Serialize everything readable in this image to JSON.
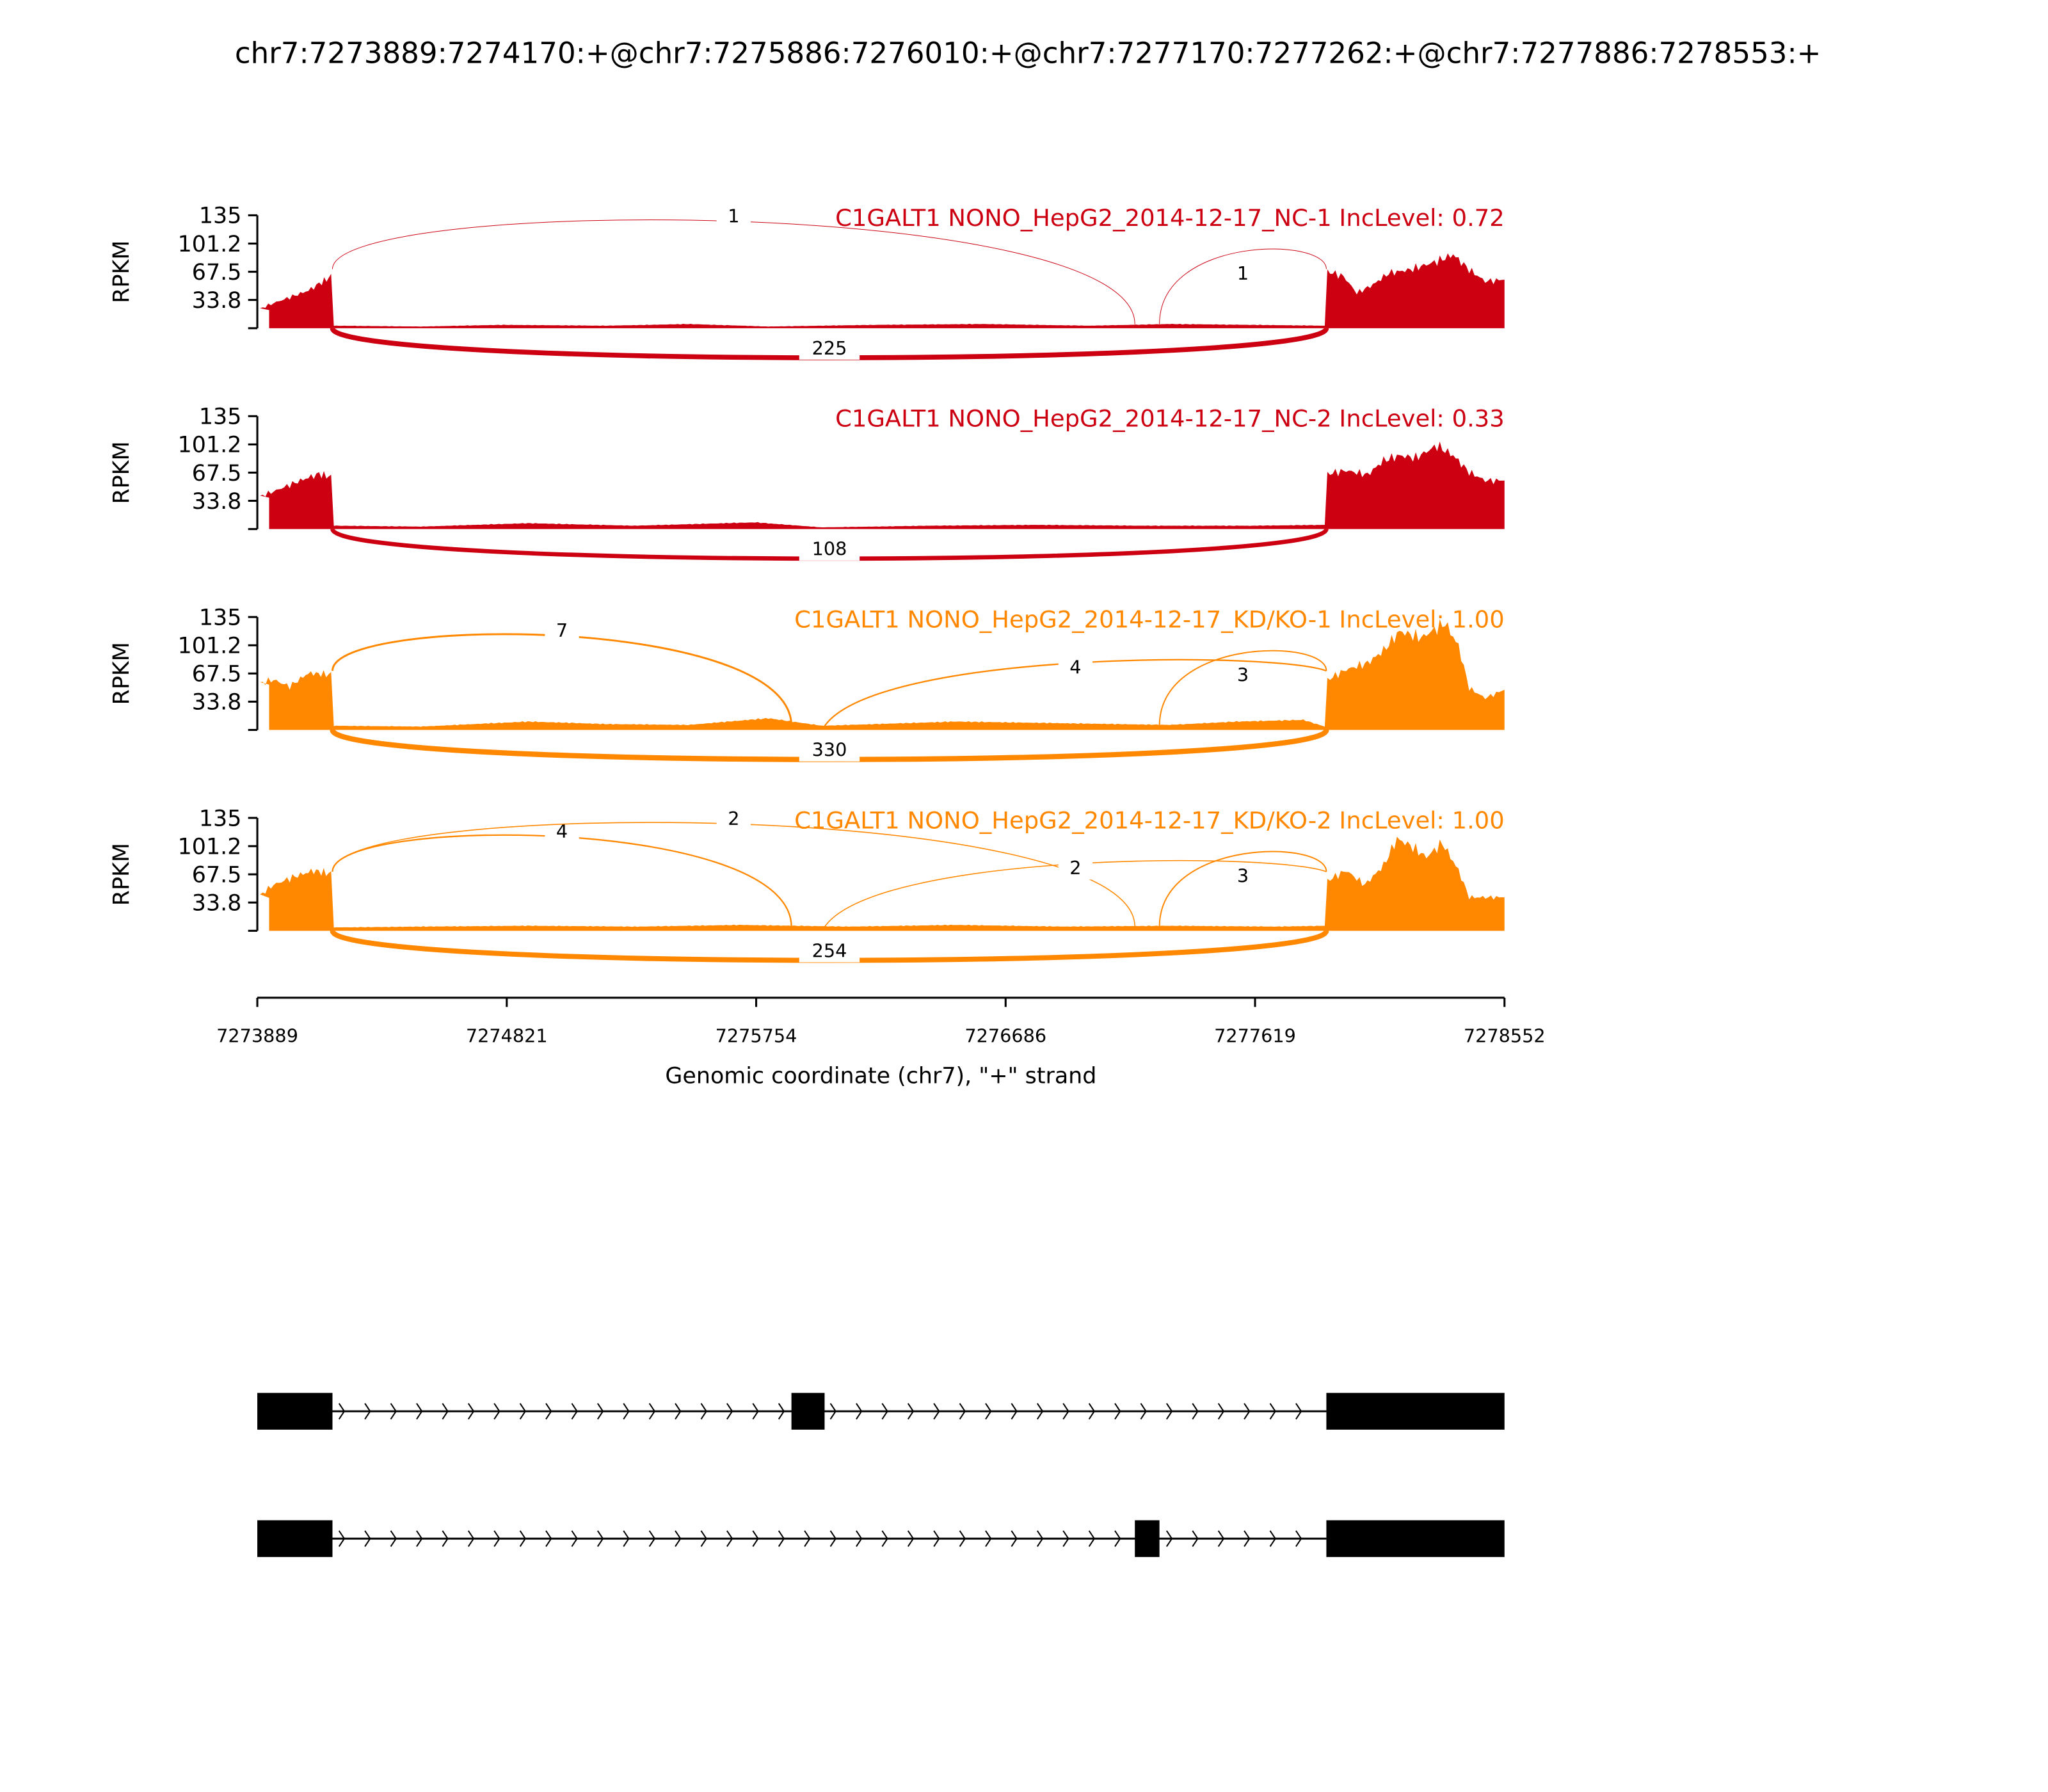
{
  "chart_data": {
    "type": "area",
    "title": "chr7:7273889:7274170:+@chr7:7275886:7276010:+@chr7:7277170:7277262:+@chr7:7277886:7278553:+",
    "xlabel": "Genomic coordinate (chr7), \"+\" strand",
    "ylabel": "RPKM",
    "xlim": [
      7273889,
      7278552
    ],
    "ylim": [
      0,
      135
    ],
    "xticks": [
      "7273889",
      "7274821",
      "7275754",
      "7276686",
      "7277619",
      "7278552"
    ],
    "yticks": [
      "135",
      "101.2",
      "67.5",
      "33.8"
    ],
    "samples": [
      {
        "label": "C1GALT1 NONO_HepG2_2014-12-17_NC-1 IncLevel: 0.72",
        "color": "#CC0011",
        "coverage": [
          [
            7273889,
            22
          ],
          [
            7273950,
            30
          ],
          [
            7274020,
            38
          ],
          [
            7274080,
            45
          ],
          [
            7274130,
            55
          ],
          [
            7274165,
            62
          ],
          [
            7274175,
            3
          ],
          [
            7274500,
            2
          ],
          [
            7274800,
            4
          ],
          [
            7275200,
            3
          ],
          [
            7275500,
            5
          ],
          [
            7275800,
            2
          ],
          [
            7276200,
            4
          ],
          [
            7276600,
            5
          ],
          [
            7277000,
            3
          ],
          [
            7277300,
            5
          ],
          [
            7277600,
            4
          ],
          [
            7277880,
            3
          ],
          [
            7277890,
            68
          ],
          [
            7277950,
            62
          ],
          [
            7278000,
            42
          ],
          [
            7278060,
            52
          ],
          [
            7278120,
            66
          ],
          [
            7278200,
            70
          ],
          [
            7278300,
            80
          ],
          [
            7278360,
            88
          ],
          [
            7278420,
            70
          ],
          [
            7278480,
            56
          ],
          [
            7278552,
            58
          ]
        ],
        "junctions": [
          {
            "from": 7274170,
            "to": 7277886,
            "count": "225",
            "side": "below"
          },
          {
            "from": 7274170,
            "to": 7277170,
            "count": "1",
            "side": "above"
          },
          {
            "from": 7277262,
            "to": 7277886,
            "count": "1",
            "side": "above"
          }
        ]
      },
      {
        "label": "C1GALT1 NONO_HepG2_2014-12-17_NC-2 IncLevel: 0.33",
        "color": "#CC0011",
        "coverage": [
          [
            7273889,
            38
          ],
          [
            7273950,
            45
          ],
          [
            7274050,
            58
          ],
          [
            7274120,
            66
          ],
          [
            7274165,
            62
          ],
          [
            7274175,
            4
          ],
          [
            7274500,
            3
          ],
          [
            7274900,
            7
          ],
          [
            7275300,
            4
          ],
          [
            7275750,
            8
          ],
          [
            7276000,
            2
          ],
          [
            7276400,
            4
          ],
          [
            7276800,
            5
          ],
          [
            7277200,
            4
          ],
          [
            7277600,
            4
          ],
          [
            7277880,
            5
          ],
          [
            7277890,
            66
          ],
          [
            7277960,
            70
          ],
          [
            7278040,
            65
          ],
          [
            7278100,
            82
          ],
          [
            7278160,
            88
          ],
          [
            7278220,
            85
          ],
          [
            7278300,
            100
          ],
          [
            7278360,
            88
          ],
          [
            7278420,
            68
          ],
          [
            7278480,
            58
          ],
          [
            7278552,
            58
          ]
        ],
        "junctions": [
          {
            "from": 7274170,
            "to": 7277886,
            "count": "108",
            "side": "below"
          }
        ]
      },
      {
        "label": "C1GALT1 NONO_HepG2_2014-12-17_KD/KO-1 IncLevel: 1.00",
        "color": "#FF8800",
        "coverage": [
          [
            7273889,
            55
          ],
          [
            7273950,
            60
          ],
          [
            7274010,
            52
          ],
          [
            7274080,
            68
          ],
          [
            7274165,
            66
          ],
          [
            7274175,
            5
          ],
          [
            7274500,
            4
          ],
          [
            7274900,
            10
          ],
          [
            7275200,
            7
          ],
          [
            7275500,
            6
          ],
          [
            7275800,
            14
          ],
          [
            7276000,
            5
          ],
          [
            7276500,
            10
          ],
          [
            7276900,
            8
          ],
          [
            7277300,
            6
          ],
          [
            7277550,
            10
          ],
          [
            7277800,
            12
          ],
          [
            7277880,
            4
          ],
          [
            7277890,
            60
          ],
          [
            7277960,
            72
          ],
          [
            7278040,
            80
          ],
          [
            7278100,
            95
          ],
          [
            7278160,
            118
          ],
          [
            7278240,
            110
          ],
          [
            7278330,
            128
          ],
          [
            7278380,
            100
          ],
          [
            7278420,
            50
          ],
          [
            7278480,
            38
          ],
          [
            7278552,
            48
          ]
        ],
        "junctions": [
          {
            "from": 7274170,
            "to": 7277886,
            "count": "330",
            "side": "below"
          },
          {
            "from": 7274170,
            "to": 7275886,
            "count": "7",
            "side": "above"
          },
          {
            "from": 7276010,
            "to": 7277886,
            "count": "4",
            "side": "above"
          },
          {
            "from": 7277262,
            "to": 7277886,
            "count": "3",
            "side": "above"
          }
        ]
      },
      {
        "label": "C1GALT1 NONO_HepG2_2014-12-17_KD/KO-2 IncLevel: 1.00",
        "color": "#FF8800",
        "coverage": [
          [
            7273889,
            40
          ],
          [
            7273950,
            55
          ],
          [
            7274030,
            65
          ],
          [
            7274100,
            72
          ],
          [
            7274165,
            68
          ],
          [
            7274175,
            4
          ],
          [
            7274500,
            5
          ],
          [
            7274900,
            6
          ],
          [
            7275300,
            5
          ],
          [
            7275700,
            7
          ],
          [
            7276100,
            5
          ],
          [
            7276500,
            7
          ],
          [
            7276900,
            5
          ],
          [
            7277300,
            6
          ],
          [
            7277700,
            5
          ],
          [
            7277880,
            6
          ],
          [
            7277890,
            60
          ],
          [
            7277960,
            72
          ],
          [
            7278030,
            55
          ],
          [
            7278100,
            78
          ],
          [
            7278150,
            110
          ],
          [
            7278200,
            102
          ],
          [
            7278260,
            88
          ],
          [
            7278320,
            105
          ],
          [
            7278380,
            72
          ],
          [
            7278420,
            40
          ],
          [
            7278552,
            40
          ]
        ],
        "junctions": [
          {
            "from": 7274170,
            "to": 7277886,
            "count": "254",
            "side": "below"
          },
          {
            "from": 7274170,
            "to": 7275886,
            "count": "4",
            "side": "above"
          },
          {
            "from": 7274170,
            "to": 7277170,
            "count": "2",
            "side": "above"
          },
          {
            "from": 7276010,
            "to": 7277886,
            "count": "2",
            "side": "above"
          },
          {
            "from": 7277262,
            "to": 7277886,
            "count": "3",
            "side": "above"
          }
        ]
      }
    ],
    "transcripts": [
      {
        "exons": [
          [
            7273889,
            7274170
          ],
          [
            7275886,
            7276010
          ],
          [
            7277886,
            7278552
          ]
        ]
      },
      {
        "exons": [
          [
            7273889,
            7274170
          ],
          [
            7277170,
            7277262
          ],
          [
            7277886,
            7278552
          ]
        ]
      }
    ]
  }
}
